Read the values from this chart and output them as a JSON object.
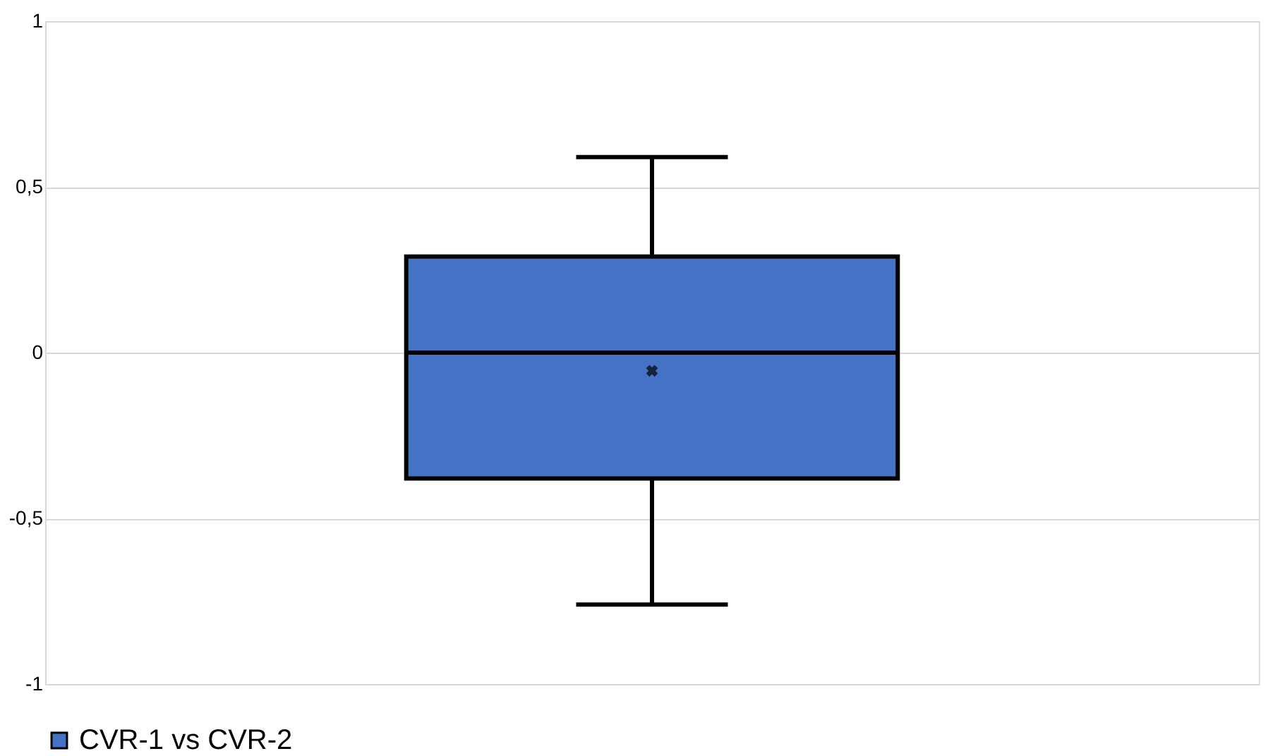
{
  "chart_data": {
    "type": "box",
    "categories": [
      null
    ],
    "series": [
      {
        "name": "CVR-1 vs CVR-2",
        "color": "#4472c4",
        "boxes": [
          {
            "low": -0.76,
            "q1": -0.38,
            "median": 0,
            "q3": 0.29,
            "high": 0.59,
            "mean": -0.055
          }
        ]
      }
    ],
    "ylim": [
      -1,
      1
    ],
    "yticks": [
      {
        "value": -1,
        "label": "-1"
      },
      {
        "value": -0.5,
        "label": "-0,5"
      },
      {
        "value": 0,
        "label": "0"
      },
      {
        "value": 0.5,
        "label": "0,5"
      },
      {
        "value": 1,
        "label": "1"
      }
    ],
    "grid": "y",
    "legend": "bottom",
    "marker": "cross"
  }
}
